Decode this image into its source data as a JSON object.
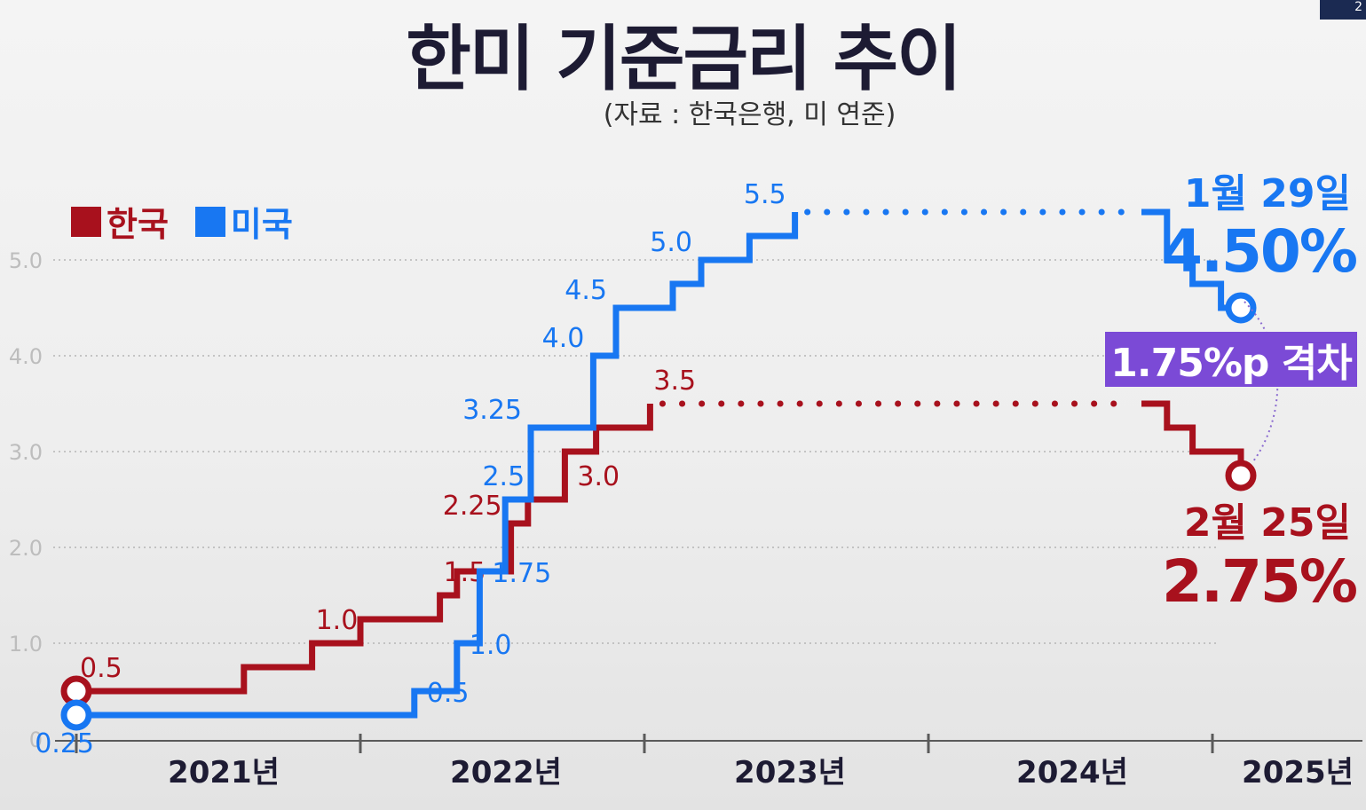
{
  "title": "한미 기준금리 추이",
  "subtitle": "(자료 : 한국은행, 미 연준)",
  "corner_label": "2",
  "legend": [
    {
      "label": "한국",
      "color": "#a8111d"
    },
    {
      "label": "미국",
      "color": "#1877f2"
    }
  ],
  "gap_label": "1.75%p 격차",
  "gap_color": "#7b4ad6",
  "us_callout": {
    "date": "1월 29일",
    "value": "4.50%"
  },
  "kr_callout": {
    "date": "2월 25일",
    "value": "2.75%"
  },
  "chart_data": {
    "type": "line",
    "title": "한미 기준금리 추이",
    "ylim": [
      0,
      5.5
    ],
    "yticks": [
      "0",
      "1.0",
      "2.0",
      "3.0",
      "4.0",
      "5.0"
    ],
    "xlabels": [
      "2021년",
      "2022년",
      "2023년",
      "2024년",
      "2025년"
    ],
    "series": [
      {
        "name": "한국",
        "color": "#a8111d",
        "points": [
          [
            0,
            0.5
          ],
          [
            0.59,
            0.75
          ],
          [
            0.83,
            1.0
          ],
          [
            1.0,
            1.25
          ],
          [
            1.28,
            1.5
          ],
          [
            1.34,
            1.75
          ],
          [
            1.53,
            2.25
          ],
          [
            1.59,
            2.5
          ],
          [
            1.72,
            3.0
          ],
          [
            1.83,
            3.25
          ],
          [
            2.02,
            3.5
          ],
          [
            3.75,
            3.5
          ],
          [
            3.84,
            3.25
          ],
          [
            3.93,
            3.0
          ],
          [
            4.1,
            2.75
          ]
        ],
        "dotted_segment": [
          10,
          11
        ],
        "labels": [
          {
            "i": 0,
            "text": "0.5",
            "pos": "above"
          },
          {
            "i": 2,
            "text": "1.0",
            "pos": "above"
          },
          {
            "i": 4,
            "text": "1.5",
            "pos": "above"
          },
          {
            "i": 6,
            "text": "2.25",
            "pos": "left"
          },
          {
            "i": 8,
            "text": "3.0",
            "pos": "below"
          },
          {
            "i": 10,
            "text": "3.5",
            "pos": "above"
          }
        ]
      },
      {
        "name": "미국",
        "color": "#1877f2",
        "points": [
          [
            0,
            0.25
          ],
          [
            1.19,
            0.5
          ],
          [
            1.34,
            1.0
          ],
          [
            1.42,
            1.75
          ],
          [
            1.51,
            2.5
          ],
          [
            1.6,
            3.25
          ],
          [
            1.82,
            4.0
          ],
          [
            1.9,
            4.5
          ],
          [
            2.1,
            4.75
          ],
          [
            2.2,
            5.0
          ],
          [
            2.37,
            5.25
          ],
          [
            2.53,
            5.5
          ],
          [
            3.75,
            5.5
          ],
          [
            3.84,
            5.0
          ],
          [
            3.93,
            4.75
          ],
          [
            4.03,
            4.5
          ],
          [
            4.1,
            4.5
          ]
        ],
        "dotted_segment": [
          11,
          12
        ],
        "labels": [
          {
            "i": 0,
            "text": "0.25",
            "pos": "below-right"
          },
          {
            "i": 1,
            "text": "0.5",
            "pos": "right"
          },
          {
            "i": 2,
            "text": "1.0",
            "pos": "right"
          },
          {
            "i": 3,
            "text": "1.75",
            "pos": "right"
          },
          {
            "i": 4,
            "text": "2.5",
            "pos": "above-left"
          },
          {
            "i": 5,
            "text": "3.25",
            "pos": "left"
          },
          {
            "i": 6,
            "text": "4.0",
            "pos": "left"
          },
          {
            "i": 7,
            "text": "4.5",
            "pos": "left"
          },
          {
            "i": 9,
            "text": "5.0",
            "pos": "left"
          },
          {
            "i": 11,
            "text": "5.5",
            "pos": "left"
          }
        ]
      }
    ]
  }
}
